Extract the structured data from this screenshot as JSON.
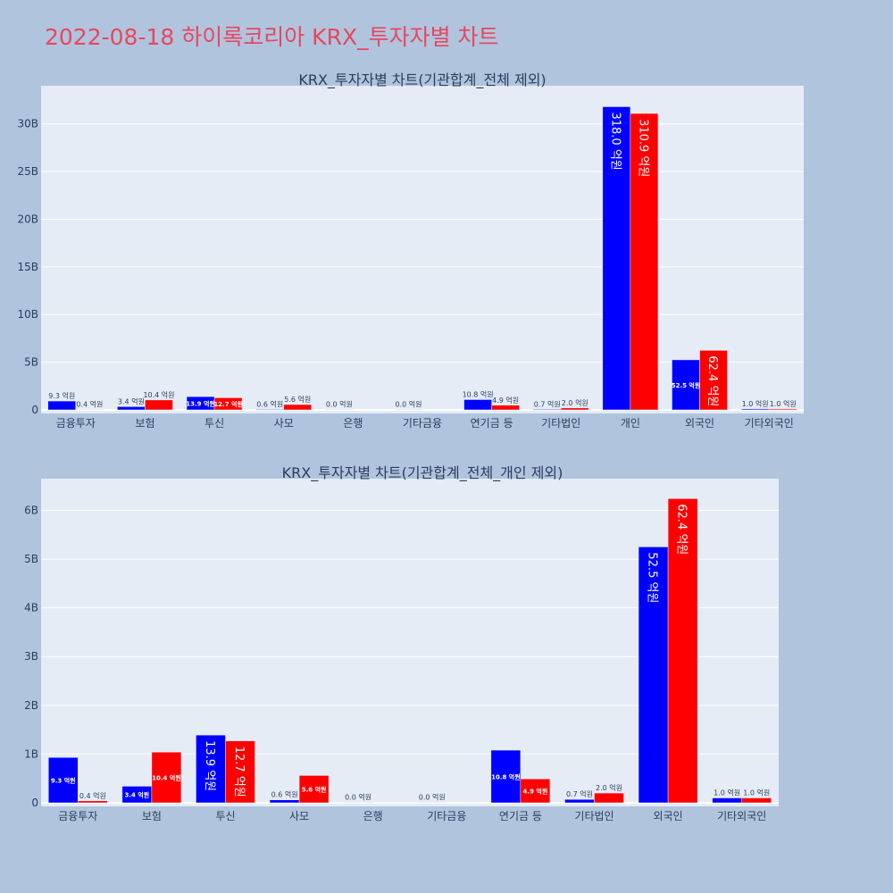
{
  "page_title": "2022-08-18 하이록코리아 KRX_투자자별 차트",
  "colors": {
    "background": "#b0c4de",
    "plot_bg": "#e5ecf6",
    "title": "#e8475f",
    "series_1": "#0000ff",
    "series_2": "#ff0000",
    "text": "#2a3f5f"
  },
  "chart_data": [
    {
      "type": "bar",
      "title": "KRX_투자자별 차트(기관합계_전체 제외)",
      "categories": [
        "금융투자",
        "보험",
        "투신",
        "사모",
        "은행",
        "기타금융",
        "연기금 등",
        "기타법인",
        "개인",
        "외국인",
        "기타외국인"
      ],
      "series": [
        {
          "color": "#0000ff",
          "values": [
            930000000,
            340000000,
            1390000000,
            60000000,
            0,
            0,
            1080000000,
            70000000,
            31800000000,
            5250000000,
            100000000
          ],
          "labels": [
            "9.3 억원",
            "3.4 억원",
            "13.9 억원",
            "0.6 억원",
            "0.0 억원",
            "0.0 억원",
            "10.8 억원",
            "0.7 억원",
            "318.0 억원",
            "52.5 억원",
            "1.0 억원"
          ]
        },
        {
          "color": "#ff0000",
          "values": [
            40000000,
            1040000000,
            1270000000,
            560000000,
            null,
            null,
            490000000,
            200000000,
            31090000000,
            6240000000,
            100000000
          ],
          "labels": [
            "0.4 억원",
            "10.4 억원",
            "12.7 억원",
            "5.6 억원",
            null,
            null,
            "4.9 억원",
            "2.0 억원",
            "310.9 억원",
            "62.4 억원",
            "1.0 억원"
          ]
        }
      ],
      "ylim": [
        0,
        34000000000
      ],
      "yticks": [
        0,
        5000000000,
        10000000000,
        15000000000,
        20000000000,
        25000000000,
        30000000000
      ],
      "ytick_labels": [
        "0",
        "5B",
        "10B",
        "15B",
        "20B",
        "25B",
        "30B"
      ],
      "grid": true,
      "legend": "none"
    },
    {
      "type": "bar",
      "title": "KRX_투자자별 차트(기관합계_전체_개인 제외)",
      "categories": [
        "금융투자",
        "보험",
        "투신",
        "사모",
        "은행",
        "기타금융",
        "연기금 등",
        "기타법인",
        "외국인",
        "기타외국인"
      ],
      "series": [
        {
          "color": "#0000ff",
          "values": [
            930000000,
            340000000,
            1390000000,
            60000000,
            0,
            0,
            1080000000,
            70000000,
            5250000000,
            100000000
          ],
          "labels": [
            "9.3 억원",
            "3.4 억원",
            "13.9 억원",
            "0.6 억원",
            "0.0 억원",
            "0.0 억원",
            "10.8 억원",
            "0.7 억원",
            "52.5 억원",
            "1.0 억원"
          ]
        },
        {
          "color": "#ff0000",
          "values": [
            40000000,
            1040000000,
            1270000000,
            560000000,
            null,
            null,
            490000000,
            200000000,
            6240000000,
            100000000
          ],
          "labels": [
            "0.4 억원",
            "10.4 억원",
            "12.7 억원",
            "5.6 억원",
            null,
            null,
            "4.9 억원",
            "2.0 억원",
            "62.4 억원",
            "1.0 억원"
          ]
        }
      ],
      "ylim": [
        0,
        6650000000
      ],
      "yticks": [
        0,
        1000000000,
        2000000000,
        3000000000,
        4000000000,
        5000000000,
        6000000000
      ],
      "ytick_labels": [
        "0",
        "1B",
        "2B",
        "3B",
        "4B",
        "5B",
        "6B"
      ],
      "grid": true,
      "legend": "none"
    }
  ]
}
